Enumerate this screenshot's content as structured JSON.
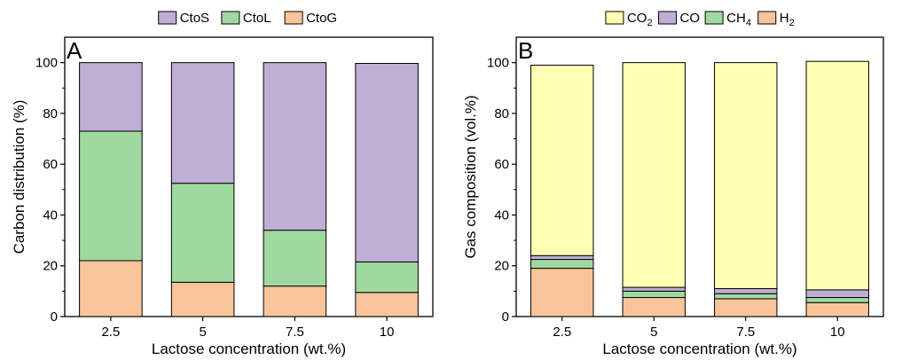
{
  "chart_data": [
    {
      "type": "bar",
      "stacked": true,
      "panel_label": "A",
      "categories": [
        "2.5",
        "5",
        "7.5",
        "10"
      ],
      "xlabel": "Lactose concentration (wt.%)",
      "ylabel": "Carbon distribution (%)",
      "ylim": [
        0,
        110
      ],
      "yticks": [
        "0",
        "20",
        "40",
        "60",
        "80",
        "100"
      ],
      "legend_position": "top",
      "series": [
        {
          "name": "CtoG",
          "color": "#f9c49a",
          "values": [
            22,
            13.5,
            12,
            9.5
          ]
        },
        {
          "name": "CtoL",
          "color": "#9fd99f",
          "values": [
            51,
            39,
            22,
            12
          ]
        },
        {
          "name": "CtoS",
          "color": "#bfaed5",
          "values": [
            27,
            47.5,
            66,
            78.2
          ]
        }
      ],
      "legend_order": [
        "CtoS",
        "CtoL",
        "CtoG"
      ]
    },
    {
      "type": "bar",
      "stacked": true,
      "panel_label": "B",
      "categories": [
        "2.5",
        "5",
        "7.5",
        "10"
      ],
      "xlabel": "Lactose concentration (wt.%)",
      "ylabel": "Gas composition (vol.%)",
      "ylim": [
        0,
        110
      ],
      "yticks": [
        "0",
        "20",
        "40",
        "60",
        "80",
        "100"
      ],
      "legend_position": "top",
      "series": [
        {
          "name": "H",
          "sub": "2",
          "color": "#f9c49a",
          "values": [
            19,
            7.5,
            7,
            5.5
          ]
        },
        {
          "name": "CH",
          "sub": "4",
          "color": "#9fd99f",
          "values": [
            3.5,
            2.5,
            2,
            2
          ]
        },
        {
          "name": "CO",
          "sub": "",
          "color": "#bfaed5",
          "values": [
            1.5,
            1.5,
            2,
            3
          ]
        },
        {
          "name": "CO",
          "sub": "2",
          "color": "#ffffb3",
          "values": [
            75,
            88.5,
            89,
            90
          ]
        }
      ],
      "legend_order": [
        3,
        2,
        1,
        0
      ]
    }
  ]
}
